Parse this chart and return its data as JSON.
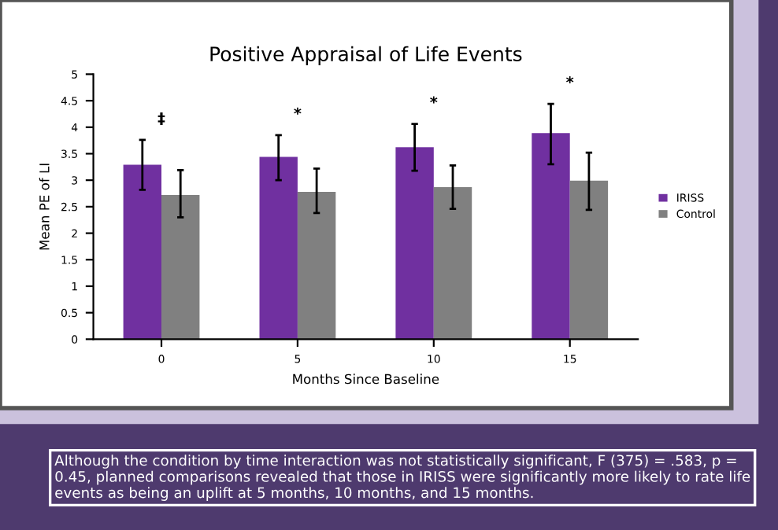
{
  "chart_data": {
    "type": "bar",
    "title": "Positive Appraisal of Life Events",
    "xlabel": "Months Since Baseline",
    "ylabel": "Mean PE of LI",
    "categories": [
      "0",
      "5",
      "10",
      "15"
    ],
    "series": [
      {
        "name": "IRISS",
        "color": "#7030a0",
        "values": [
          3.29,
          3.44,
          3.62,
          3.89
        ],
        "errors": [
          [
            2.82,
            3.76
          ],
          [
            3.0,
            3.85
          ],
          [
            3.18,
            4.06
          ],
          [
            3.3,
            4.44
          ]
        ]
      },
      {
        "name": "Control",
        "color": "#808080",
        "values": [
          2.72,
          2.78,
          2.87,
          2.99
        ],
        "errors": [
          [
            2.3,
            3.19
          ],
          [
            2.38,
            3.22
          ],
          [
            2.46,
            3.28
          ],
          [
            2.44,
            3.52
          ]
        ]
      }
    ],
    "ylim": [
      0,
      5
    ],
    "yticks": [
      0,
      0.5,
      1,
      1.5,
      2,
      2.5,
      3,
      3.5,
      4,
      4.5,
      5
    ],
    "grid": false,
    "legend": "right",
    "annotations": [
      "‡",
      "*",
      "*",
      "*",
      "Although the condition by time interaction was not statistically significant, F (375) = .583, p = 0.45, planned comparisons revealed that those in IRISS were significantly more likely to rate life events as being an uplift at 5 months, 10 months, and 15 months."
    ]
  }
}
